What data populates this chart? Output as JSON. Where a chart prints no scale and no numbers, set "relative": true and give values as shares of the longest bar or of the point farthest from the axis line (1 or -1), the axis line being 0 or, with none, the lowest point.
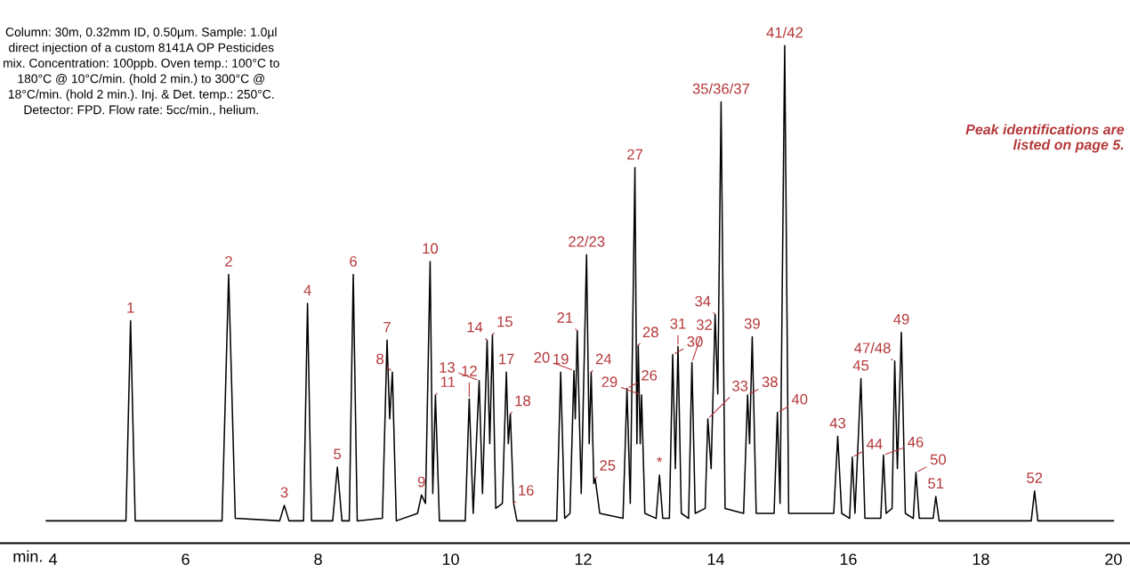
{
  "chart_data": {
    "type": "line",
    "relative": true,
    "color": "#000000",
    "marker": "none",
    "line_style": "solid",
    "grid": false,
    "xlabel": "min.",
    "xlim": [
      3.2,
      20.25
    ],
    "xticks": [
      4,
      6,
      8,
      10,
      12,
      14,
      16,
      18,
      20
    ],
    "x": [
      3.9,
      5.1,
      5.17,
      5.24,
      6.55,
      6.65,
      6.75,
      7.42,
      7.49,
      7.56,
      7.78,
      7.84,
      7.9,
      8.22,
      8.29,
      8.36,
      8.47,
      8.53,
      8.59,
      8.97,
      9.04,
      9.08,
      9.12,
      9.18,
      9.5,
      9.56,
      9.62,
      9.69,
      9.73,
      9.77,
      9.83,
      10.22,
      10.28,
      10.34,
      10.43,
      10.48,
      10.55,
      10.59,
      10.63,
      10.68,
      10.78,
      10.84,
      10.87,
      10.9,
      10.95,
      11.0,
      11.6,
      11.66,
      11.72,
      11.8,
      11.86,
      11.88,
      11.91,
      11.97,
      12.05,
      12.09,
      12.12,
      12.16,
      12.18,
      12.25,
      12.6,
      12.66,
      12.71,
      12.78,
      12.81,
      12.83,
      12.86,
      12.88,
      12.93,
      13.1,
      13.15,
      13.2,
      13.3,
      13.35,
      13.39,
      13.43,
      13.48,
      13.59,
      13.64,
      13.69,
      13.84,
      13.88,
      13.93,
      13.99,
      14.03,
      14.08,
      14.14,
      14.42,
      14.48,
      14.51,
      14.55,
      14.61,
      14.88,
      14.93,
      14.97,
      15.04,
      15.1,
      15.78,
      15.84,
      15.9,
      16.02,
      16.06,
      16.1,
      16.19,
      16.25,
      16.49,
      16.53,
      16.57,
      16.66,
      16.7,
      16.74,
      16.8,
      16.86,
      16.98,
      17.02,
      17.07,
      17.28,
      17.32,
      17.37,
      18.76,
      18.81,
      18.86,
      20.0
    ],
    "values": [
      0.045,
      0.045,
      0.447,
      0.045,
      0.045,
      0.54,
      0.05,
      0.045,
      0.076,
      0.045,
      0.045,
      0.482,
      0.045,
      0.045,
      0.153,
      0.045,
      0.045,
      0.54,
      0.045,
      0.05,
      0.408,
      0.25,
      0.344,
      0.045,
      0.06,
      0.097,
      0.08,
      0.566,
      0.1,
      0.298,
      0.045,
      0.045,
      0.29,
      0.06,
      0.327,
      0.1,
      0.408,
      0.2,
      0.419,
      0.07,
      0.08,
      0.344,
      0.2,
      0.26,
      0.08,
      0.045,
      0.045,
      0.344,
      0.05,
      0.06,
      0.347,
      0.25,
      0.427,
      0.1,
      0.58,
      0.2,
      0.344,
      0.12,
      0.13,
      0.06,
      0.05,
      0.311,
      0.08,
      0.755,
      0.2,
      0.398,
      0.2,
      0.298,
      0.06,
      0.05,
      0.137,
      0.05,
      0.05,
      0.379,
      0.15,
      0.395,
      0.06,
      0.05,
      0.363,
      0.06,
      0.07,
      0.25,
      0.15,
      0.46,
      0.3,
      0.887,
      0.07,
      0.06,
      0.298,
      0.2,
      0.415,
      0.06,
      0.06,
      0.263,
      0.08,
      1.0,
      0.06,
      0.06,
      0.215,
      0.06,
      0.05,
      0.173,
      0.06,
      0.331,
      0.05,
      0.05,
      0.177,
      0.06,
      0.07,
      0.366,
      0.15,
      0.424,
      0.06,
      0.05,
      0.142,
      0.05,
      0.05,
      0.094,
      0.045,
      0.045,
      0.105,
      0.045,
      0.045
    ],
    "annotations": [
      "Column: 30m, 0.32mm ID, 0.50µm. Sample: 1.0µl\ndirect injection of a custom 8141A OP Pesticides\nmix. Concentration: 100ppb. Oven temp.: 100°C to\n180°C @ 10°C/min. (hold 2 min.) to 300°C @\n18°C/min. (hold 2 min.). Inj. & Det. temp.: 250°C.\nDetector: FPD. Flow rate: 5cc/min., helium.",
      "Peak identifications are\nlisted on page 5.",
      {
        "text": "1",
        "x": 5.17,
        "y": 0.447
      },
      {
        "text": "2",
        "x": 6.65,
        "y": 0.54
      },
      {
        "text": "3",
        "x": 7.49,
        "y": 0.076
      },
      {
        "text": "4",
        "x": 7.84,
        "y": 0.482
      },
      {
        "text": "5",
        "x": 8.29,
        "y": 0.153
      },
      {
        "text": "6",
        "x": 8.53,
        "y": 0.54
      },
      {
        "text": "7",
        "x": 9.04,
        "y": 0.408
      },
      {
        "text": "8",
        "x": 9.12,
        "y": 0.344
      },
      {
        "text": "9",
        "x": 9.56,
        "y": 0.097
      },
      {
        "text": "10",
        "x": 9.69,
        "y": 0.566
      },
      {
        "text": "11",
        "x": 9.77,
        "y": 0.298
      },
      {
        "text": "12",
        "x": 10.28,
        "y": 0.29
      },
      {
        "text": "13",
        "x": 10.43,
        "y": 0.327
      },
      {
        "text": "14",
        "x": 10.55,
        "y": 0.408
      },
      {
        "text": "15",
        "x": 10.63,
        "y": 0.419
      },
      {
        "text": "16",
        "x": 10.95,
        "y": 0.08
      },
      {
        "text": "17",
        "x": 10.84,
        "y": 0.344
      },
      {
        "text": "18",
        "x": 10.9,
        "y": 0.26
      },
      {
        "text": "19",
        "x": 11.66,
        "y": 0.344
      },
      {
        "text": "20",
        "x": 11.86,
        "y": 0.347
      },
      {
        "text": "21",
        "x": 11.91,
        "y": 0.427
      },
      {
        "text": "22/23",
        "x": 12.05,
        "y": 0.58
      },
      {
        "text": "24",
        "x": 12.12,
        "y": 0.344
      },
      {
        "text": "25",
        "x": 12.18,
        "y": 0.13
      },
      {
        "text": "26",
        "x": 12.66,
        "y": 0.311
      },
      {
        "text": "27",
        "x": 12.78,
        "y": 0.755
      },
      {
        "text": "28",
        "x": 12.83,
        "y": 0.398
      },
      {
        "text": "29",
        "x": 12.88,
        "y": 0.298
      },
      {
        "text": "*",
        "x": 13.15,
        "y": 0.137
      },
      {
        "text": "30",
        "x": 13.35,
        "y": 0.379
      },
      {
        "text": "31",
        "x": 13.43,
        "y": 0.395
      },
      {
        "text": "32",
        "x": 13.64,
        "y": 0.363
      },
      {
        "text": "33",
        "x": 13.88,
        "y": 0.25
      },
      {
        "text": "34",
        "x": 13.99,
        "y": 0.46
      },
      {
        "text": "35/36/37",
        "x": 14.08,
        "y": 0.887
      },
      {
        "text": "38",
        "x": 14.48,
        "y": 0.298
      },
      {
        "text": "39",
        "x": 14.55,
        "y": 0.415
      },
      {
        "text": "40",
        "x": 14.93,
        "y": 0.263
      },
      {
        "text": "41/42",
        "x": 15.04,
        "y": 1.0
      },
      {
        "text": "43",
        "x": 15.84,
        "y": 0.215
      },
      {
        "text": "44",
        "x": 16.06,
        "y": 0.173
      },
      {
        "text": "45",
        "x": 16.19,
        "y": 0.331
      },
      {
        "text": "46",
        "x": 16.53,
        "y": 0.177
      },
      {
        "text": "47/48",
        "x": 16.7,
        "y": 0.366
      },
      {
        "text": "49",
        "x": 16.8,
        "y": 0.424
      },
      {
        "text": "50",
        "x": 17.02,
        "y": 0.142
      },
      {
        "text": "51",
        "x": 17.32,
        "y": 0.094
      },
      {
        "text": "52",
        "x": 18.81,
        "y": 0.105
      }
    ]
  }
}
